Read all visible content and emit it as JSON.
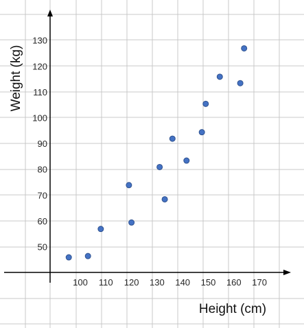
{
  "chart_data": {
    "type": "scatter",
    "title": "",
    "xlabel": "Height (cm)",
    "ylabel": "Weight (kg)",
    "x_ticks": [
      100,
      110,
      120,
      130,
      140,
      150,
      160,
      170
    ],
    "y_ticks": [
      50,
      60,
      70,
      80,
      90,
      100,
      110,
      120,
      130
    ],
    "grid": true,
    "legend": "none",
    "marker_color": "#4472c4",
    "grid_color": "#c9c9c9",
    "axis_color": "#000000",
    "series": [
      {
        "x": [
          95.5,
          103,
          108,
          119,
          120,
          131,
          133,
          136,
          141.5,
          147.5,
          149,
          154.5,
          162.5,
          164
        ],
        "y": [
          46,
          46.5,
          57,
          74,
          59.5,
          81,
          68.5,
          92,
          83.5,
          94.5,
          105.5,
          116,
          113.5,
          127
        ]
      }
    ]
  }
}
